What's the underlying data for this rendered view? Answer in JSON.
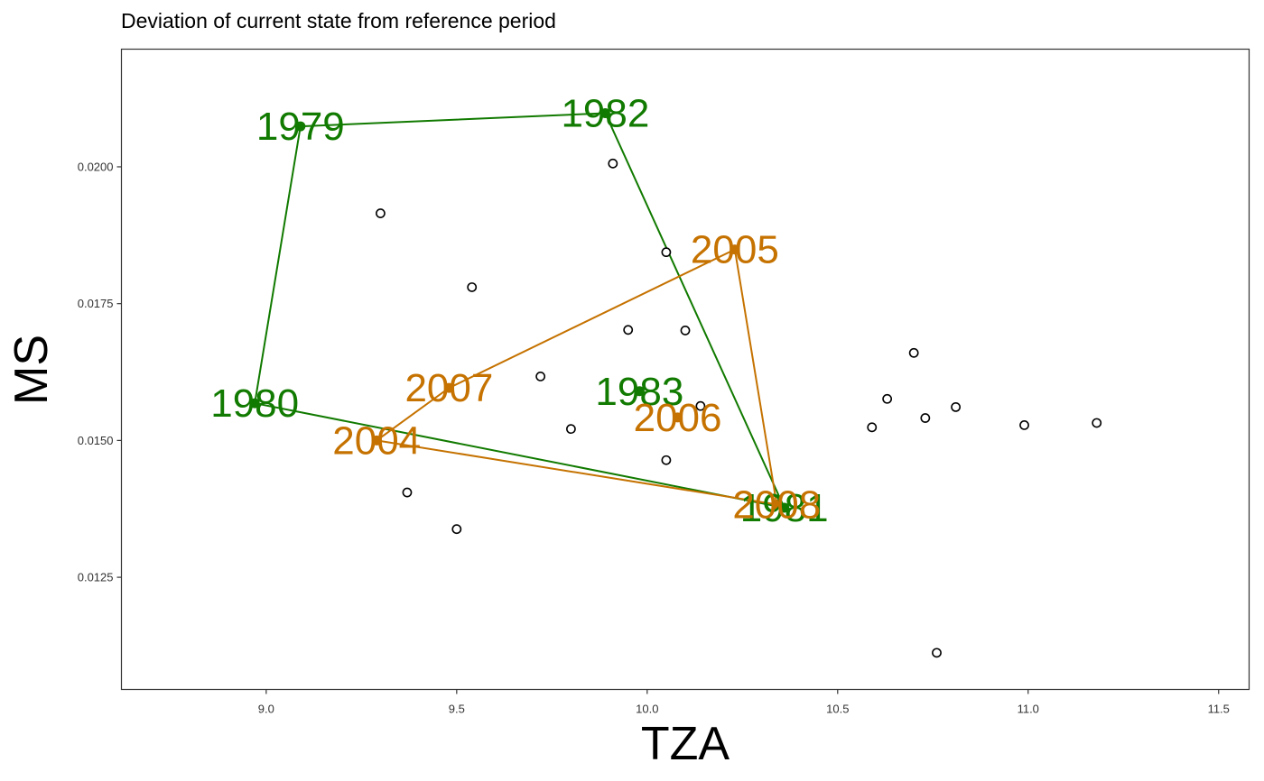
{
  "chart_data": {
    "type": "scatter",
    "title": "Deviation of current state from reference period",
    "xlabel": "TZA",
    "ylabel": "MS",
    "xlim": [
      8.62,
      11.58
    ],
    "ylim": [
      0.01045,
      0.02215
    ],
    "xticks": [
      9.0,
      9.5,
      10.0,
      10.5,
      11.0,
      11.5
    ],
    "xtick_labels": [
      "9.0",
      "9.5",
      "10.0",
      "10.5",
      "11.0",
      "11.5"
    ],
    "yticks": [
      0.0125,
      0.015,
      0.0175,
      0.02
    ],
    "ytick_labels": [
      "0.0125",
      "0.0150",
      "0.0175",
      "0.0200"
    ],
    "grid": false,
    "background_points": {
      "x": [
        9.91,
        9.3,
        10.05,
        9.54,
        9.95,
        10.1,
        10.7,
        9.72,
        10.63,
        10.14,
        10.81,
        10.73,
        10.59,
        9.8,
        10.99,
        11.18,
        10.05,
        9.37,
        9.5,
        10.76
      ],
      "y": [
        0.02006,
        0.01915,
        0.01844,
        0.0178,
        0.01702,
        0.01701,
        0.0166,
        0.01617,
        0.01576,
        0.01563,
        0.01561,
        0.01541,
        0.01524,
        0.01521,
        0.01528,
        0.01532,
        0.01464,
        0.01405,
        0.01338,
        0.01112
      ]
    },
    "series": [
      {
        "color": "#117a00",
        "points": [
          {
            "label": "1979",
            "x": 9.09,
            "y": 0.02074
          },
          {
            "label": "1980",
            "x": 8.97,
            "y": 0.01568
          },
          {
            "label": "1981",
            "x": 10.36,
            "y": 0.01377
          },
          {
            "label": "1982",
            "x": 9.89,
            "y": 0.02098
          },
          {
            "label": "1983",
            "x": 9.98,
            "y": 0.0159
          }
        ],
        "hull": [
          "1979",
          "1982",
          "1981",
          "1980"
        ]
      },
      {
        "color": "#c57200",
        "points": [
          {
            "label": "2004",
            "x": 9.29,
            "y": 0.015
          },
          {
            "label": "2005",
            "x": 10.23,
            "y": 0.01849
          },
          {
            "label": "2006",
            "x": 10.08,
            "y": 0.01542
          },
          {
            "label": "2007",
            "x": 9.48,
            "y": 0.01596
          },
          {
            "label": "2008",
            "x": 10.34,
            "y": 0.01383
          }
        ],
        "hull": [
          "2005",
          "2008",
          "2004",
          "2007"
        ]
      }
    ]
  }
}
